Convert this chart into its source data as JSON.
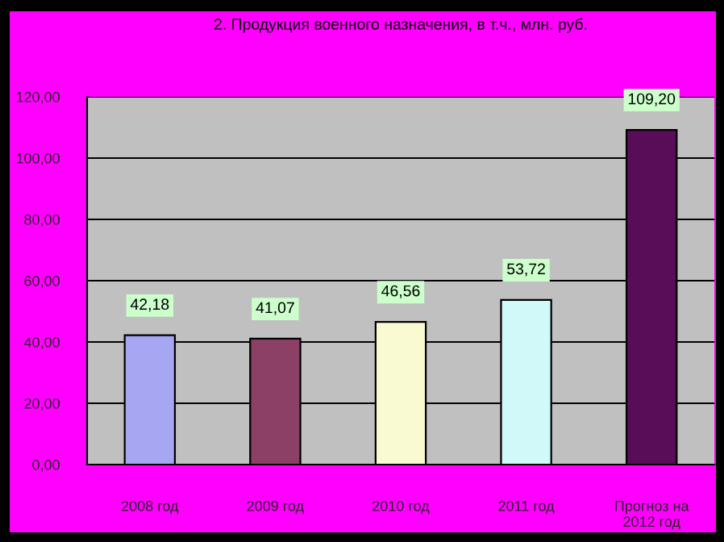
{
  "chart_data": {
    "type": "bar",
    "title": "2. Продукция военного назначения, в т.ч., млн. руб.",
    "categories": [
      "2008 год",
      "2009 год",
      "2010 год",
      "2011 год",
      "Прогноз на\n2012 год"
    ],
    "values": [
      42.18,
      41.07,
      46.56,
      53.72,
      109.2
    ],
    "colors": [
      "#9999ff",
      "#993366",
      "#ffffcc",
      "#ccffff",
      "#660066"
    ],
    "value_labels": [
      "42,18",
      "41,07",
      "46,56",
      "53,72",
      "109,20"
    ],
    "ylim": [
      0,
      120
    ],
    "yticks": [
      {
        "value": 0,
        "label": "0,00"
      },
      {
        "value": 20,
        "label": "20,00"
      },
      {
        "value": 40,
        "label": "40,00"
      },
      {
        "value": 60,
        "label": "60,00"
      },
      {
        "value": 80,
        "label": "80,00"
      },
      {
        "value": 100,
        "label": "100,00"
      },
      {
        "value": 120,
        "label": "120,00"
      }
    ],
    "grid": "y"
  }
}
